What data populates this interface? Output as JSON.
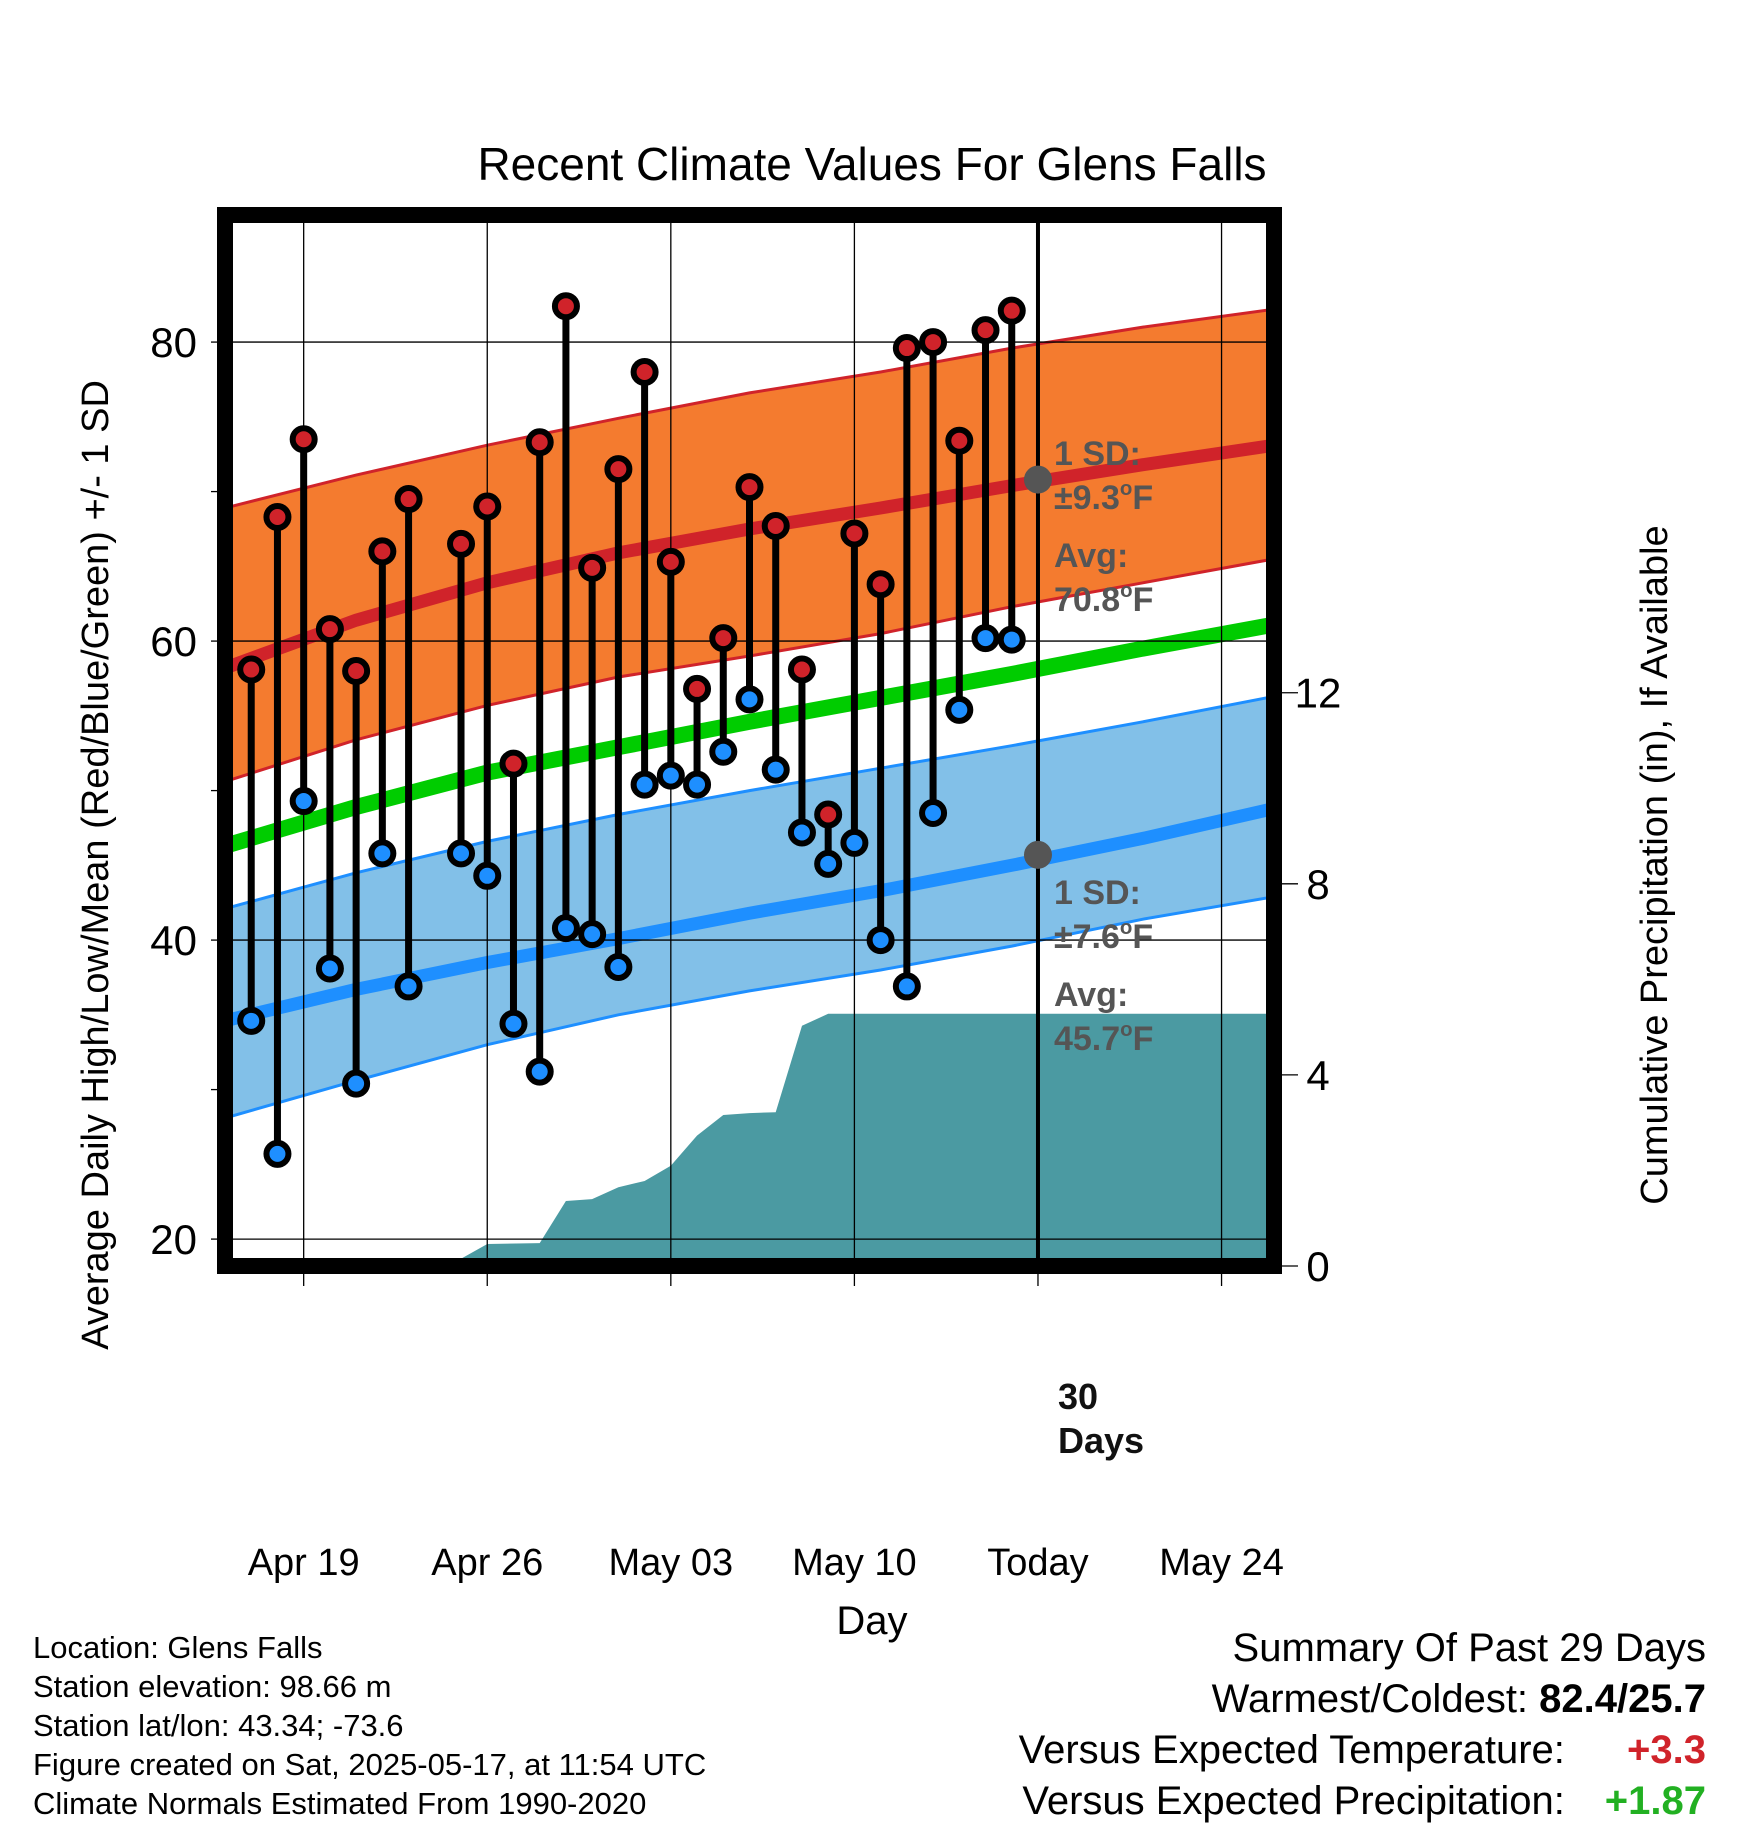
{
  "chart_data": {
    "type": "line",
    "title": "Recent Climate Values For Glens Falls",
    "xlabel": "Day",
    "ylabel": "Average Daily High/Low/Mean (Red/Blue/Green) +/- 1 SD",
    "y2label": "Cumulative Precipitation (in), If Available",
    "ylim": [
      18.2,
      88.5
    ],
    "y2lim": [
      0,
      22.0
    ],
    "yticks": [
      20,
      40,
      60,
      80
    ],
    "y2ticks": [
      0,
      4,
      8,
      12
    ],
    "xlim": [
      "2025-04-16",
      "2025-05-26"
    ],
    "xticks": [
      {
        "date": "2025-04-19",
        "label": "Apr 19"
      },
      {
        "date": "2025-04-26",
        "label": "Apr 26"
      },
      {
        "date": "2025-05-03",
        "label": "May 03"
      },
      {
        "date": "2025-05-10",
        "label": "May 10"
      },
      {
        "date": "2025-05-17",
        "label": "Today"
      },
      {
        "date": "2025-05-24",
        "label": "May 24"
      }
    ],
    "today": "2025-05-17",
    "grid": true,
    "colors": {
      "high_band": "#f47b2f",
      "high_line": "#d0232a",
      "low_band": "#82c0e8",
      "low_line": "#1e8fff",
      "mean_line": "#00cc00",
      "precip": "#4b9aa2",
      "high_marker": "#d0232a",
      "low_marker": "#1e8fff",
      "today_marker": "#555555"
    },
    "normals": {
      "dates": [
        "2025-04-16",
        "2025-04-21",
        "2025-04-26",
        "2025-05-01",
        "2025-05-06",
        "2025-05-11",
        "2025-05-16",
        "2025-05-21",
        "2025-05-26"
      ],
      "high_mean": [
        58.2,
        61.4,
        63.9,
        65.9,
        67.5,
        68.9,
        70.4,
        71.8,
        73.1
      ],
      "high_upper": [
        68.9,
        71.1,
        73.1,
        74.9,
        76.6,
        78.0,
        79.6,
        81.0,
        82.2
      ],
      "high_lower": [
        50.6,
        53.4,
        55.7,
        57.6,
        59.0,
        60.5,
        62.3,
        63.9,
        65.5
      ],
      "low_mean": [
        34.6,
        36.7,
        38.5,
        40.1,
        41.8,
        43.3,
        45.0,
        46.8,
        48.8
      ],
      "low_upper": [
        42.1,
        44.5,
        46.6,
        48.4,
        50.0,
        51.5,
        53.0,
        54.6,
        56.3
      ],
      "low_lower": [
        28.1,
        30.6,
        33.0,
        35.0,
        36.6,
        38.0,
        39.6,
        41.4,
        42.9
      ],
      "mean": [
        46.3,
        48.9,
        51.2,
        52.9,
        54.6,
        56.2,
        57.8,
        59.5,
        61.1
      ]
    },
    "series": [
      {
        "name": "High",
        "dates": [
          "2025-04-17",
          "2025-04-18",
          "2025-04-19",
          "2025-04-20",
          "2025-04-21",
          "2025-04-22",
          "2025-04-23",
          "2025-04-25",
          "2025-04-26",
          "2025-04-27",
          "2025-04-28",
          "2025-04-29",
          "2025-04-30",
          "2025-05-01",
          "2025-05-02",
          "2025-05-03",
          "2025-05-04",
          "2025-05-05",
          "2025-05-06",
          "2025-05-07",
          "2025-05-08",
          "2025-05-09",
          "2025-05-10",
          "2025-05-11",
          "2025-05-12",
          "2025-05-13",
          "2025-05-14",
          "2025-05-15",
          "2025-05-16"
        ],
        "values": [
          58.1,
          68.3,
          73.5,
          60.8,
          58.0,
          66.0,
          69.5,
          66.5,
          69.0,
          51.8,
          73.3,
          82.4,
          64.9,
          71.5,
          78.0,
          65.3,
          56.8,
          60.2,
          70.3,
          67.7,
          58.1,
          48.4,
          67.2,
          63.8,
          79.6,
          80.0,
          73.4,
          80.8,
          82.1
        ]
      },
      {
        "name": "Low",
        "dates": [
          "2025-04-17",
          "2025-04-18",
          "2025-04-19",
          "2025-04-20",
          "2025-04-21",
          "2025-04-22",
          "2025-04-23",
          "2025-04-25",
          "2025-04-26",
          "2025-04-27",
          "2025-04-28",
          "2025-04-29",
          "2025-04-30",
          "2025-05-01",
          "2025-05-02",
          "2025-05-03",
          "2025-05-04",
          "2025-05-05",
          "2025-05-06",
          "2025-05-07",
          "2025-05-08",
          "2025-05-09",
          "2025-05-10",
          "2025-05-11",
          "2025-05-12",
          "2025-05-13",
          "2025-05-14",
          "2025-05-15",
          "2025-05-16"
        ],
        "values": [
          34.6,
          25.7,
          49.3,
          38.1,
          30.4,
          45.8,
          36.9,
          45.8,
          44.3,
          34.4,
          31.2,
          40.8,
          40.4,
          38.2,
          50.4,
          51.0,
          50.4,
          52.6,
          56.1,
          51.4,
          47.2,
          45.1,
          46.5,
          40.0,
          36.9,
          48.5,
          55.4,
          60.2,
          60.1
        ]
      },
      {
        "name": "Cumulative Precipitation",
        "dates": [
          "2025-04-16",
          "2025-04-18",
          "2025-04-20",
          "2025-04-22",
          "2025-04-25",
          "2025-04-26",
          "2025-04-28",
          "2025-04-29",
          "2025-04-30",
          "2025-05-01",
          "2025-05-02",
          "2025-05-03",
          "2025-05-04",
          "2025-05-05",
          "2025-05-06",
          "2025-05-07",
          "2025-05-08",
          "2025-05-09",
          "2025-05-10",
          "2025-05-17",
          "2025-05-26"
        ],
        "values": [
          0.0,
          0.05,
          0.12,
          0.13,
          0.15,
          0.46,
          0.48,
          1.36,
          1.4,
          1.65,
          1.78,
          2.1,
          2.73,
          3.16,
          3.2,
          3.22,
          5.03,
          5.28,
          5.28,
          5.28,
          5.28
        ]
      }
    ],
    "annotations": {
      "high_sd": {
        "line1": "1 SD:",
        "line2_prefix": "±9.3",
        "deg": "o",
        "unit": "F"
      },
      "high_avg": {
        "line1": "Avg:",
        "line2_prefix": "70.8",
        "deg": "o",
        "unit": "F",
        "value": 70.8
      },
      "low_sd": {
        "line1": "1 SD:",
        "line2_prefix": "±7.6",
        "deg": "o",
        "unit": "F"
      },
      "low_avg": {
        "line1": "Avg:",
        "line2_prefix": "45.7",
        "deg": "o",
        "unit": "F",
        "value": 45.7
      },
      "days": {
        "line1": "30",
        "line2": "Days"
      }
    }
  },
  "footer": {
    "location": "Location: Glens Falls",
    "elevation": "Station elevation: 98.66 m",
    "latlon": "Station lat/lon: 43.34; -73.6",
    "created": "Figure created on Sat, 2025-05-17, at 11:54 UTC",
    "normals": "Climate Normals Estimated From 1990-2020"
  },
  "summary": {
    "title": "Summary Of Past 29 Days",
    "warm_cold_label": "Warmest/Coldest:",
    "warm_cold_value": "82.4/25.7",
    "temp_label": "Versus Expected Temperature:",
    "temp_value": "+3.3",
    "temp_color": "#d0232a",
    "precip_label": "Versus Expected Precipitation:",
    "precip_value": "+1.87",
    "precip_color": "#22b022"
  }
}
